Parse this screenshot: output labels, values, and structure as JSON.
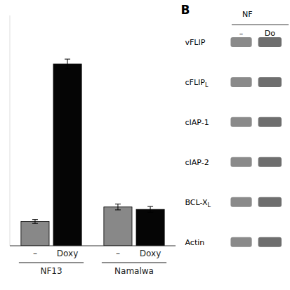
{
  "chart_data": {
    "type": "bar",
    "categories": [
      "NF13",
      "Namalwa"
    ],
    "series": [
      {
        "name": "–",
        "color": "#888888",
        "values": [
          1.0,
          1.6
        ],
        "errors": [
          0.08,
          0.12
        ]
      },
      {
        "name": "Doxy",
        "color": "#050505",
        "values": [
          7.5,
          1.5
        ],
        "errors": [
          0.2,
          0.12
        ]
      }
    ],
    "ylim": [
      0,
      9.5
    ],
    "tick_labels": "x",
    "grid": false,
    "annotations": {
      "panel": "B",
      "header": "NF",
      "lanes": [
        "–",
        "Do"
      ],
      "rows": [
        {
          "text": "vFLIP"
        },
        {
          "text": "cFLIP",
          "subscript": "L"
        },
        {
          "text": "cIAP-1"
        },
        {
          "text": "cIAP-2"
        },
        {
          "text": "BCL-X",
          "subscript": "L"
        },
        {
          "text": "Actin"
        }
      ]
    }
  }
}
